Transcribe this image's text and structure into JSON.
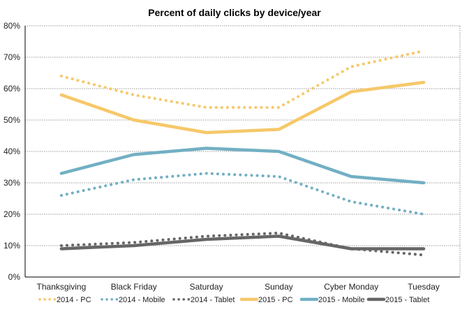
{
  "chart_data": {
    "type": "line",
    "title": "Percent of daily clicks by device/year",
    "xlabel": "",
    "ylabel": "",
    "categories": [
      "Thanksgiving",
      "Black Friday",
      "Saturday",
      "Sunday",
      "Cyber Monday",
      "Tuesday"
    ],
    "y_ticks": [
      "0%",
      "10%",
      "20%",
      "30%",
      "40%",
      "50%",
      "60%",
      "70%",
      "80%"
    ],
    "ylim": [
      0,
      80
    ],
    "grid": true,
    "legend_position": "bottom",
    "series": [
      {
        "name": "2014 - PC",
        "values": [
          64,
          58,
          54,
          54,
          67,
          72
        ],
        "color": "#F6C869",
        "style": "dotted"
      },
      {
        "name": "2014 - Mobile",
        "values": [
          26,
          31,
          33,
          32,
          24,
          20
        ],
        "color": "#72AFC4",
        "style": "dotted"
      },
      {
        "name": "2014 - Tablet",
        "values": [
          10,
          11,
          13,
          14,
          9,
          7
        ],
        "color": "#666666",
        "style": "dotted"
      },
      {
        "name": "2015 - PC",
        "values": [
          58,
          50,
          46,
          47,
          59,
          62
        ],
        "color": "#F6C869",
        "style": "solid"
      },
      {
        "name": "2015 - Mobile",
        "values": [
          33,
          39,
          41,
          40,
          32,
          30
        ],
        "color": "#72AFC4",
        "style": "solid"
      },
      {
        "name": "2015 - Tablet",
        "values": [
          9,
          10,
          12,
          13,
          9,
          9
        ],
        "color": "#666666",
        "style": "solid"
      }
    ]
  }
}
